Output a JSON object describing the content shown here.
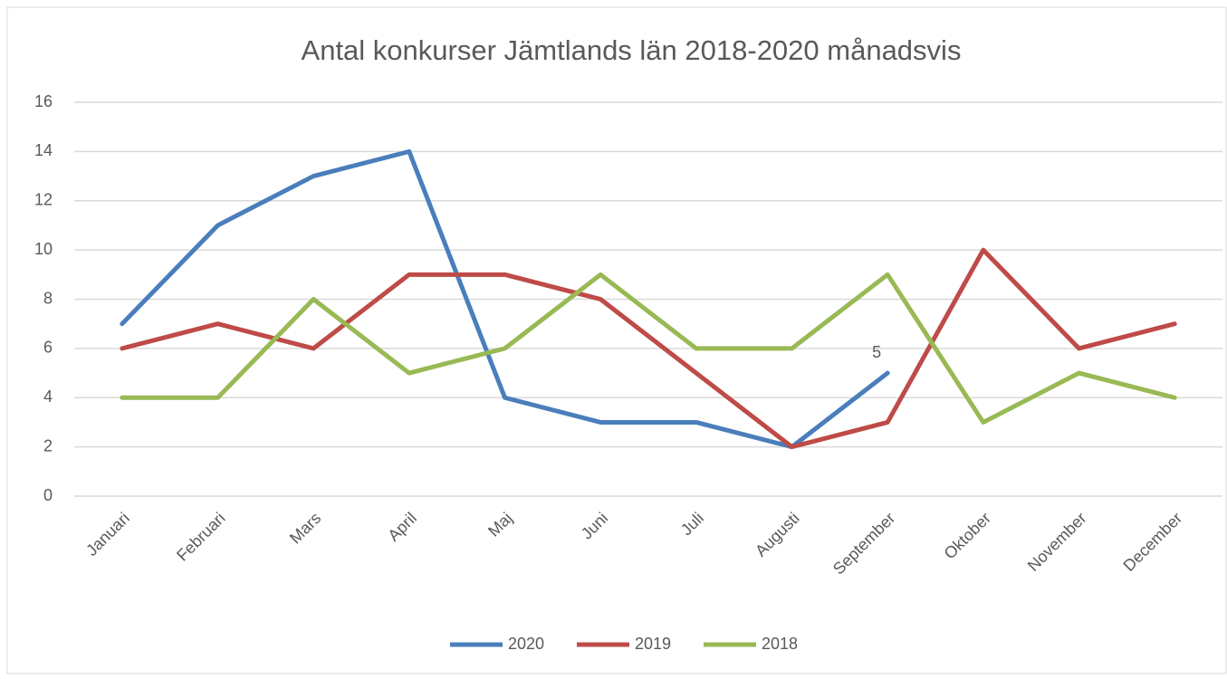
{
  "chart_data": {
    "type": "line",
    "title": "Antal konkurser Jämtlands län 2018-2020 månadsvis",
    "categories": [
      "Januari",
      "Februari",
      "Mars",
      "April",
      "Maj",
      "Juni",
      "Juli",
      "Augusti",
      "September",
      "Oktober",
      "November",
      "December"
    ],
    "series": [
      {
        "name": "2020",
        "color": "#4a7ebb",
        "values": [
          7,
          11,
          13,
          14,
          4,
          3,
          3,
          2,
          5,
          null,
          null,
          null
        ],
        "value_labels": [
          null,
          null,
          null,
          null,
          null,
          null,
          null,
          null,
          "5",
          null,
          null,
          null
        ]
      },
      {
        "name": "2019",
        "color": "#be4b48",
        "values": [
          6,
          7,
          6,
          9,
          9,
          8,
          5,
          2,
          3,
          10,
          6,
          7
        ]
      },
      {
        "name": "2018",
        "color": "#98b954",
        "values": [
          4,
          4,
          8,
          5,
          6,
          9,
          6,
          6,
          9,
          3,
          5,
          4
        ]
      }
    ],
    "ylim": [
      0,
      16
    ],
    "yticks": [
      0,
      2,
      4,
      6,
      8,
      10,
      12,
      14,
      16
    ],
    "grid": true,
    "legend": "bottom"
  }
}
